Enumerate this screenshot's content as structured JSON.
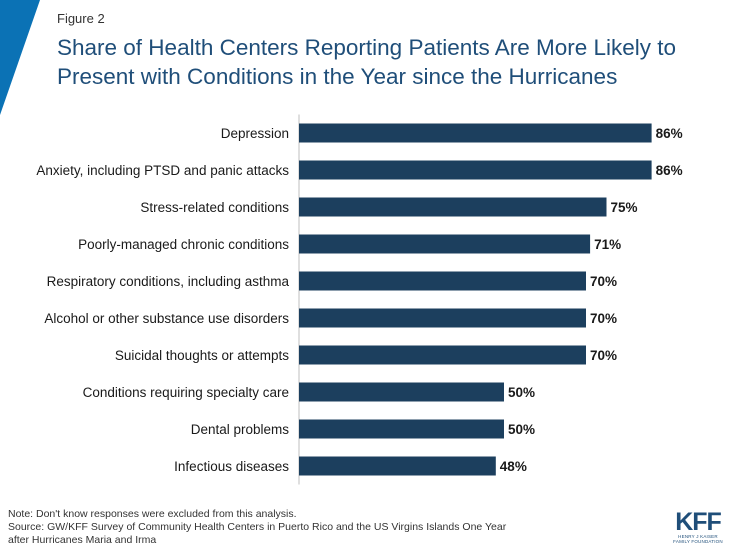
{
  "header": {
    "figure_label": "Figure 2",
    "title": "Share of Health Centers Reporting Patients Are More Likely to Present with Conditions in the Year since the Hurricanes"
  },
  "chart_data": {
    "type": "bar",
    "orientation": "horizontal",
    "categories": [
      "Depression",
      "Anxiety, including PTSD and panic attacks",
      "Stress-related conditions",
      "Poorly-managed chronic conditions",
      "Respiratory conditions, including asthma",
      "Alcohol or other substance use disorders",
      "Suicidal thoughts or attempts",
      "Conditions requiring specialty care",
      "Dental problems",
      "Infectious diseases"
    ],
    "values": [
      86,
      86,
      75,
      71,
      70,
      70,
      70,
      50,
      50,
      48
    ],
    "data_labels": [
      "86%",
      "86%",
      "75%",
      "71%",
      "70%",
      "70%",
      "70%",
      "50%",
      "50%",
      "48%"
    ],
    "xlim": [
      0,
      100
    ],
    "grid": false,
    "bar_color": "#1c3f5e"
  },
  "footer": {
    "note": "Note: Don't know responses were  excluded from this analysis.",
    "source_line1": "Source: GW/KFF Survey of Community Health Centers in Puerto Rico and the US Virgins Islands One Year",
    "source_line2": "after Hurricanes Maria and Irma"
  },
  "logo": {
    "mark": "KFF",
    "subtitle_line1": "HENRY J KAISER",
    "subtitle_line2": "FAMILY FOUNDATION"
  },
  "colors": {
    "accent": "#0b72b5",
    "title": "#1f4e79",
    "bar": "#1c3f5e"
  }
}
